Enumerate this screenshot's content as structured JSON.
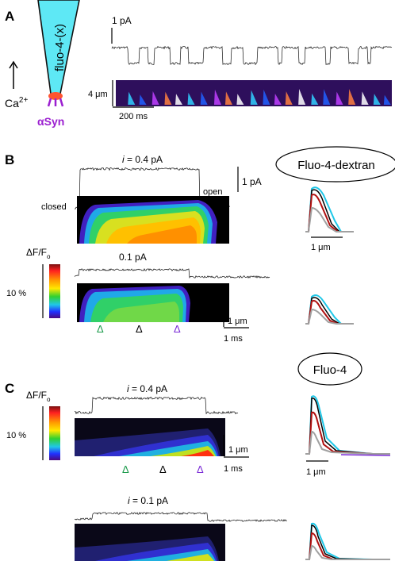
{
  "panels": {
    "A": {
      "label": "A",
      "pipette_text": "fluo-4-(x)",
      "ion": "Ca",
      "ion_charge": "2+",
      "protein": "αSyn",
      "current_scale": "1 pA",
      "length_scale": "4 μm",
      "time_scale": "200 ms"
    },
    "B": {
      "label": "B",
      "current_top_prefix": "i",
      "current_top_value": "= 0.4 pA",
      "closed": "closed",
      "open": "open",
      "current_scale": "1 pA",
      "current_bottom": "0.1 pA",
      "dff_label": "ΔF/F",
      "dff_sub": "o",
      "percent": "10 %",
      "length_scale": "1 μm",
      "time_scale": "1 ms",
      "dye": "Fluo-4-dextran",
      "profile_scale": "1 μm"
    },
    "C": {
      "label": "C",
      "dff_label": "ΔF/F",
      "dff_sub": "o",
      "percent": "10 %",
      "current_top_prefix": "i",
      "current_top_value": "= 0.4 pA",
      "length_scale": "1 μm",
      "time_scale": "1 ms",
      "current_bottom_prefix": "i",
      "current_bottom_value": "= 0.1 pA",
      "dye": "Fluo-4",
      "profile_scale": "1 μm"
    }
  },
  "markers": {
    "glyph": "Δ",
    "colors": [
      "#1a9a4a",
      "#000000",
      "#7a2ad6"
    ]
  },
  "colors": {
    "pipette": "#5ee8f5",
    "protein": "#9b1fd0",
    "stack": "#2e0f5c"
  },
  "colorbar": [
    "#7a1010",
    "#ff2020",
    "#ff9a00",
    "#ffe800",
    "#30d030",
    "#20c8e8",
    "#2030ff",
    "#4a0a80"
  ]
}
